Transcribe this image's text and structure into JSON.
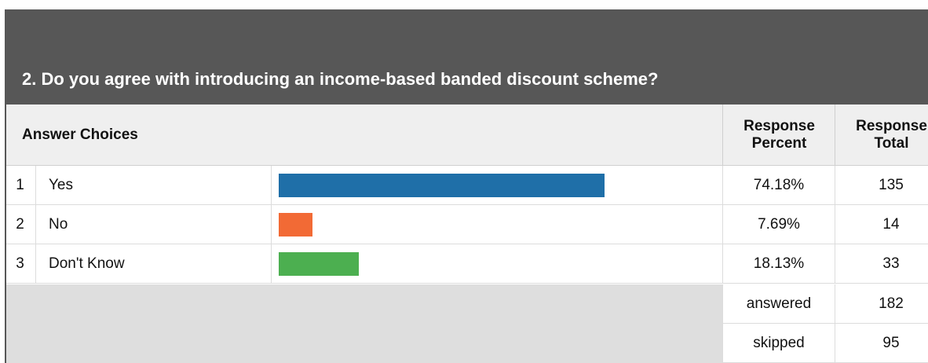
{
  "title": "2. Do you agree with introducing an income-based banded discount scheme?",
  "columns": {
    "answer_choices": "Answer Choices",
    "response_percent": "Response Percent",
    "response_total": "Response Total"
  },
  "chart_data": {
    "type": "bar",
    "orientation": "horizontal",
    "categories": [
      "Yes",
      "No",
      "Don't Know"
    ],
    "values": [
      74.18,
      7.69,
      18.13
    ],
    "totals": [
      135,
      14,
      33
    ],
    "colors": [
      "#1f6fa8",
      "#f26a35",
      "#4caf50"
    ],
    "xlim": [
      0,
      100
    ]
  },
  "rows": [
    {
      "num": "1",
      "label": "Yes",
      "percent": "74.18%",
      "total": "135"
    },
    {
      "num": "2",
      "label": "No",
      "percent": "7.69%",
      "total": "14"
    },
    {
      "num": "3",
      "label": "Don't Know",
      "percent": "18.13%",
      "total": "33"
    }
  ],
  "summary": {
    "answered_label": "answered",
    "answered_value": "182",
    "skipped_label": "skipped",
    "skipped_value": "95"
  }
}
